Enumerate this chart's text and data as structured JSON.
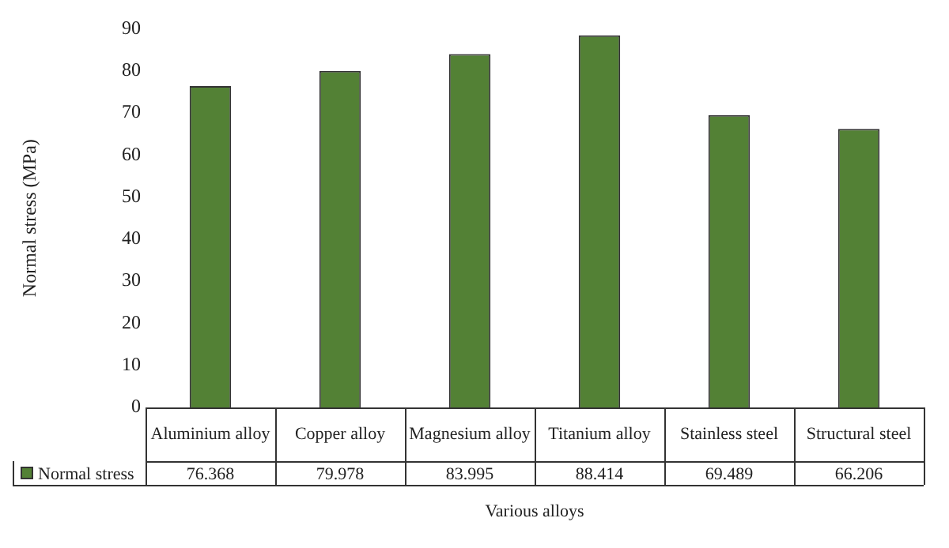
{
  "chart_data": {
    "type": "bar",
    "xlabel": "Various alloys",
    "ylabel": "Normal stress (MPa)",
    "categories": [
      "Aluminium alloy",
      "Copper alloy",
      "Magnesium alloy",
      "Titanium alloy",
      "Stainless steel",
      "Structural steel"
    ],
    "series": [
      {
        "name": "Normal stress",
        "color": "#538135",
        "values": [
          76.368,
          79.978,
          83.995,
          88.414,
          69.489,
          66.206
        ]
      }
    ],
    "ylim": [
      0,
      90
    ],
    "yticks": [
      0,
      10,
      20,
      30,
      40,
      50,
      60,
      70,
      80,
      90
    ],
    "data_labels": true,
    "grid": false,
    "legend": "bottom"
  }
}
